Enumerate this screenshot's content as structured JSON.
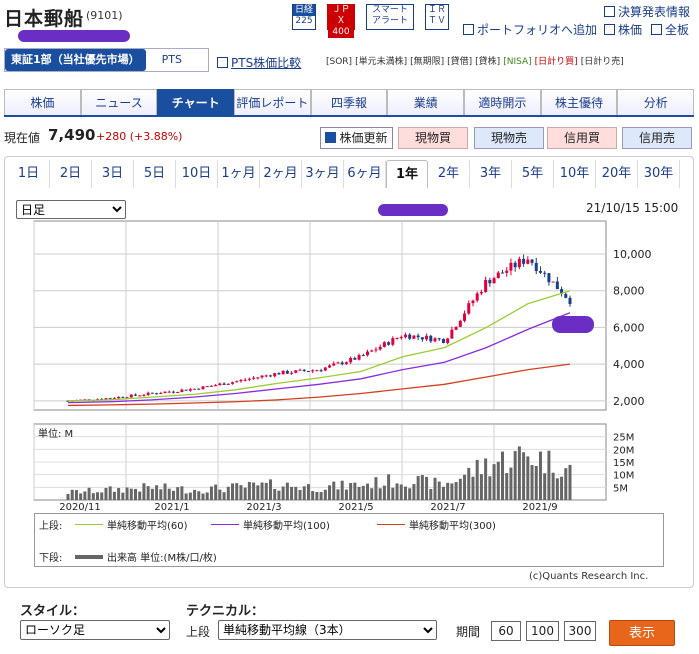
{
  "header": {
    "title": "日本郵船",
    "code": "(9101)",
    "badges": [
      {
        "top": "日経",
        "bot": "225"
      },
      {
        "top": "ＪＰＸ",
        "bot": "400"
      },
      {
        "top": "スマート",
        "bot": "アラート"
      },
      {
        "top": "ＩＲ",
        "bot": "ＴＶ"
      }
    ],
    "links": {
      "earnings": "決算発表情報",
      "portfolio": "ポートフォリオへ追加",
      "quote": "株価",
      "board": "全板"
    }
  },
  "market": {
    "selected": "東証1部（当社優先市場）",
    "pts": "PTS",
    "pts_compare": "PTS株価比較"
  },
  "tags": [
    "[SOR]",
    "[単元未満株]",
    "[無期限]",
    "[貸借]",
    "[貸株]",
    "[NISA]",
    "[日計り買]",
    "[日計り売]"
  ],
  "nav": [
    "株価",
    "ニュース",
    "チャート",
    "評価レポート",
    "四季報",
    "業績",
    "適時開示",
    "株主優待",
    "分析"
  ],
  "price": {
    "label": "現在値",
    "value": "7,490",
    "change": "+280 (+3.88%)"
  },
  "actions": {
    "refresh": "株価更新",
    "spot_buy": "現物買",
    "spot_sell": "現物売",
    "margin_buy": "信用買",
    "margin_sell": "信用売"
  },
  "periods": [
    "1日",
    "2日",
    "3日",
    "5日",
    "10日",
    "1ヶ月",
    "2ヶ月",
    "3ヶ月",
    "6ヶ月",
    "1年",
    "2年",
    "3年",
    "5年",
    "10年",
    "20年",
    "30年"
  ],
  "chart_controls": {
    "interval": "日足",
    "timestamp": "21/10/15 15:00"
  },
  "chart_data": {
    "type": "candlestick",
    "x_ticks": [
      "2020/11",
      "2021/1",
      "2021/3",
      "2021/5",
      "2021/7",
      "2021/9"
    ],
    "price_ticks": [
      "10,000",
      "8,000",
      "6,000",
      "4,000",
      "2,000"
    ],
    "ylim": [
      1500,
      11800
    ],
    "volume_unit": "単位: M",
    "volume_ticks": [
      "25M",
      "20M",
      "15M",
      "10M",
      "5M"
    ],
    "close_monthly": [
      2000,
      2150,
      2400,
      2650,
      3050,
      3500,
      3700,
      4400,
      5600,
      5300,
      8500,
      9800,
      7490
    ],
    "ma60": [
      2000,
      2050,
      2200,
      2350,
      2600,
      2950,
      3250,
      3600,
      4400,
      4900,
      6000,
      7300,
      8000
    ],
    "ma100": [
      1900,
      1950,
      2050,
      2200,
      2400,
      2650,
      2900,
      3200,
      3700,
      4100,
      4900,
      5900,
      6800
    ],
    "ma300": [
      1750,
      1780,
      1820,
      1880,
      1950,
      2050,
      2200,
      2400,
      2650,
      2900,
      3300,
      3700,
      4000
    ],
    "volume_monthly": [
      3,
      4,
      5,
      4,
      5,
      6,
      5,
      6,
      8,
      6,
      14,
      18,
      12
    ],
    "credit": "(c)Quants Research Inc."
  },
  "legend": {
    "upper": "上段:",
    "ma60": "単純移動平均(60)",
    "ma100": "単純移動平均(100)",
    "ma300": "単純移動平均(300)",
    "lower": "下段:",
    "volume": "出来高 単位:(M株/口/枚)",
    "colors": {
      "ma60": "#9acd32",
      "ma100": "#8a2be2",
      "ma300": "#d2401e",
      "volume": "#666666"
    }
  },
  "footer": {
    "style_label": "スタイル：",
    "style_value": "ローソク足",
    "tech_label": "テクニカル：",
    "upper": "上段",
    "tech_value": "単純移動平均線（3本）",
    "period_label": "期間",
    "p1": "60",
    "p2": "100",
    "p3": "300",
    "show": "表示"
  }
}
